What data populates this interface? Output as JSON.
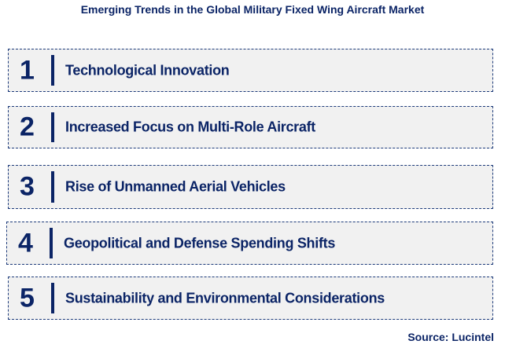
{
  "title": "Emerging Trends in the Global Military Fixed Wing Aircraft Market",
  "items": [
    {
      "number": "1",
      "label": "Technological Innovation"
    },
    {
      "number": "2",
      "label": "Increased Focus on Multi-Role Aircraft"
    },
    {
      "number": "3",
      "label": "Rise of Unmanned Aerial Vehicles"
    },
    {
      "number": "4",
      "label": "Geopolitical and Defense Spending Shifts"
    },
    {
      "number": "5",
      "label": "Sustainability and Environmental Considerations"
    }
  ],
  "source": "Source: Lucintel"
}
